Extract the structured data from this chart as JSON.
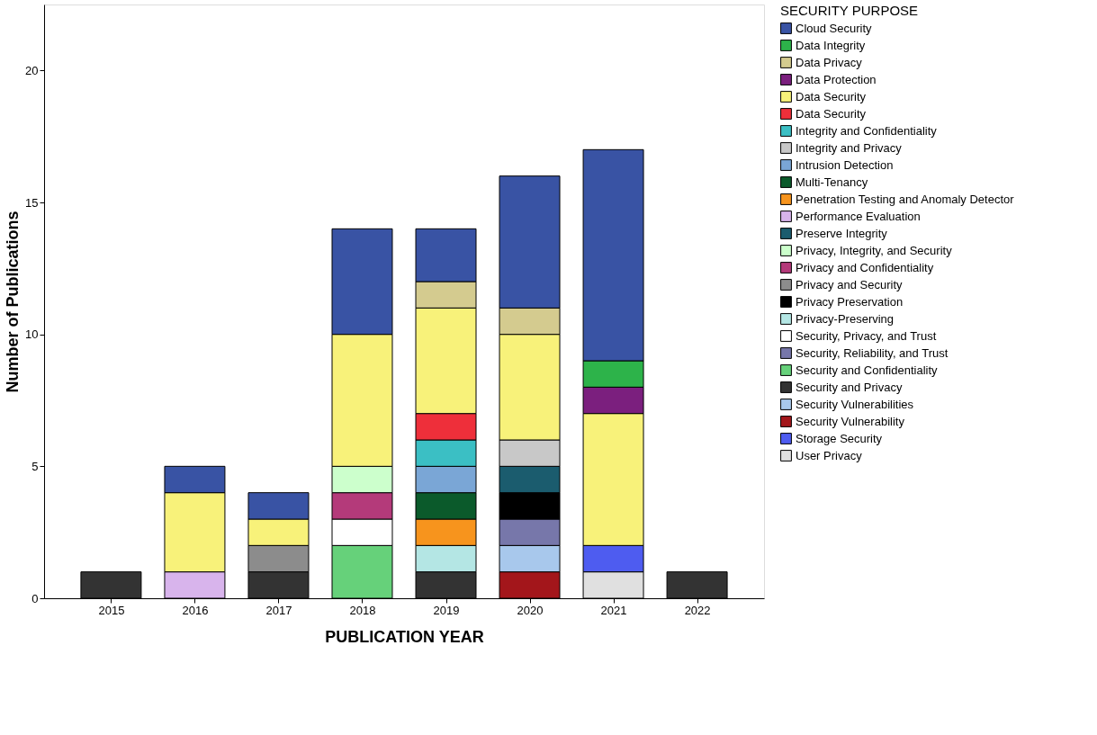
{
  "chart_data": {
    "type": "bar",
    "stacked": true,
    "xlabel": "PUBLICATION YEAR",
    "ylabel": "Number of Publications",
    "legend_title": "SECURITY PURPOSE",
    "legend": "right",
    "grid": false,
    "categories": [
      "2015",
      "2016",
      "2017",
      "2018",
      "2019",
      "2020",
      "2021",
      "2022"
    ],
    "ylim": [
      0,
      22.5
    ],
    "yticks": [
      0,
      5,
      10,
      15,
      20
    ],
    "series": [
      {
        "name": "User Privacy",
        "color": "#e0e0e0",
        "values": [
          null,
          null,
          null,
          null,
          null,
          null,
          1,
          null
        ]
      },
      {
        "name": "Storage Security",
        "color": "#4e5cf0",
        "values": [
          null,
          null,
          null,
          null,
          null,
          null,
          1,
          null
        ]
      },
      {
        "name": "Security Vulnerability",
        "color": "#a3161b",
        "values": [
          null,
          null,
          null,
          null,
          null,
          1,
          null,
          null
        ]
      },
      {
        "name": "Security Vulnerabilities",
        "color": "#a8c8ec",
        "values": [
          null,
          null,
          null,
          null,
          null,
          1,
          null,
          null
        ]
      },
      {
        "name": "Security and Privacy",
        "color": "#333333",
        "values": [
          1,
          null,
          1,
          null,
          1,
          null,
          null,
          1
        ]
      },
      {
        "name": "Security and Confidentiality",
        "color": "#66d17a",
        "values": [
          null,
          null,
          null,
          2,
          null,
          null,
          null,
          null
        ]
      },
      {
        "name": "Security, Reliability, and Trust",
        "color": "#7777aa",
        "values": [
          null,
          null,
          null,
          null,
          null,
          1,
          null,
          null
        ]
      },
      {
        "name": "Security, Privacy, and Trust",
        "color": "#ffffff",
        "values": [
          null,
          null,
          null,
          1,
          null,
          null,
          null,
          null
        ]
      },
      {
        "name": "Privacy-Preserving",
        "color": "#b4e6e4",
        "values": [
          null,
          null,
          null,
          null,
          1,
          null,
          null,
          null
        ]
      },
      {
        "name": "Privacy Preservation",
        "color": "#000000",
        "values": [
          null,
          null,
          null,
          null,
          null,
          1,
          null,
          null
        ]
      },
      {
        "name": "Privacy and Security",
        "color": "#8c8c8c",
        "values": [
          null,
          null,
          1,
          null,
          null,
          null,
          null,
          null
        ]
      },
      {
        "name": "Privacy and Confidentiality",
        "color": "#b43a7a",
        "values": [
          null,
          null,
          null,
          1,
          null,
          null,
          null,
          null
        ]
      },
      {
        "name": "Privacy, Integrity, and Security",
        "color": "#ccffcc",
        "values": [
          null,
          null,
          null,
          1,
          null,
          null,
          null,
          null
        ]
      },
      {
        "name": "Preserve Integrity",
        "color": "#1b5c6e",
        "values": [
          null,
          null,
          null,
          null,
          null,
          1,
          null,
          null
        ]
      },
      {
        "name": "Performance Evaluation",
        "color": "#d8b4ec",
        "values": [
          null,
          1,
          null,
          null,
          null,
          null,
          null,
          null
        ]
      },
      {
        "name": "Penetration Testing and Anomaly Detector",
        "color": "#f7941d",
        "values": [
          null,
          null,
          null,
          null,
          1,
          null,
          null,
          null
        ]
      },
      {
        "name": "Multi-Tenancy",
        "color": "#0b5a2b",
        "values": [
          null,
          null,
          null,
          null,
          1,
          null,
          null,
          null
        ]
      },
      {
        "name": "Intrusion Detection",
        "color": "#7aa6d6",
        "values": [
          null,
          null,
          null,
          null,
          1,
          null,
          null,
          null
        ]
      },
      {
        "name": "Integrity and Privacy",
        "color": "#c8c8c8",
        "values": [
          null,
          null,
          null,
          null,
          null,
          1,
          null,
          null
        ]
      },
      {
        "name": "Integrity and Confidentiality",
        "color": "#3bbfc4",
        "values": [
          null,
          null,
          null,
          null,
          1,
          null,
          null,
          null
        ]
      },
      {
        "name": "Data  Security",
        "color": "#ee2f3a",
        "values": [
          null,
          null,
          null,
          null,
          1,
          null,
          null,
          null
        ]
      },
      {
        "name": "Data Security",
        "color": "#f8f27a",
        "values": [
          null,
          3,
          1,
          5,
          4,
          4,
          5,
          null
        ]
      },
      {
        "name": "Data Protection",
        "color": "#7b1f7e",
        "values": [
          null,
          null,
          null,
          null,
          null,
          null,
          1,
          null
        ]
      },
      {
        "name": "Data Privacy",
        "color": "#d4cb8f",
        "values": [
          null,
          null,
          null,
          null,
          1,
          1,
          null,
          null
        ]
      },
      {
        "name": "Data Integrity",
        "color": "#2db34a",
        "values": [
          null,
          null,
          null,
          null,
          null,
          null,
          1,
          null
        ]
      },
      {
        "name": "Cloud Security",
        "color": "#3953a4",
        "values": [
          null,
          1,
          1,
          4,
          2,
          5,
          8,
          null
        ]
      }
    ]
  }
}
